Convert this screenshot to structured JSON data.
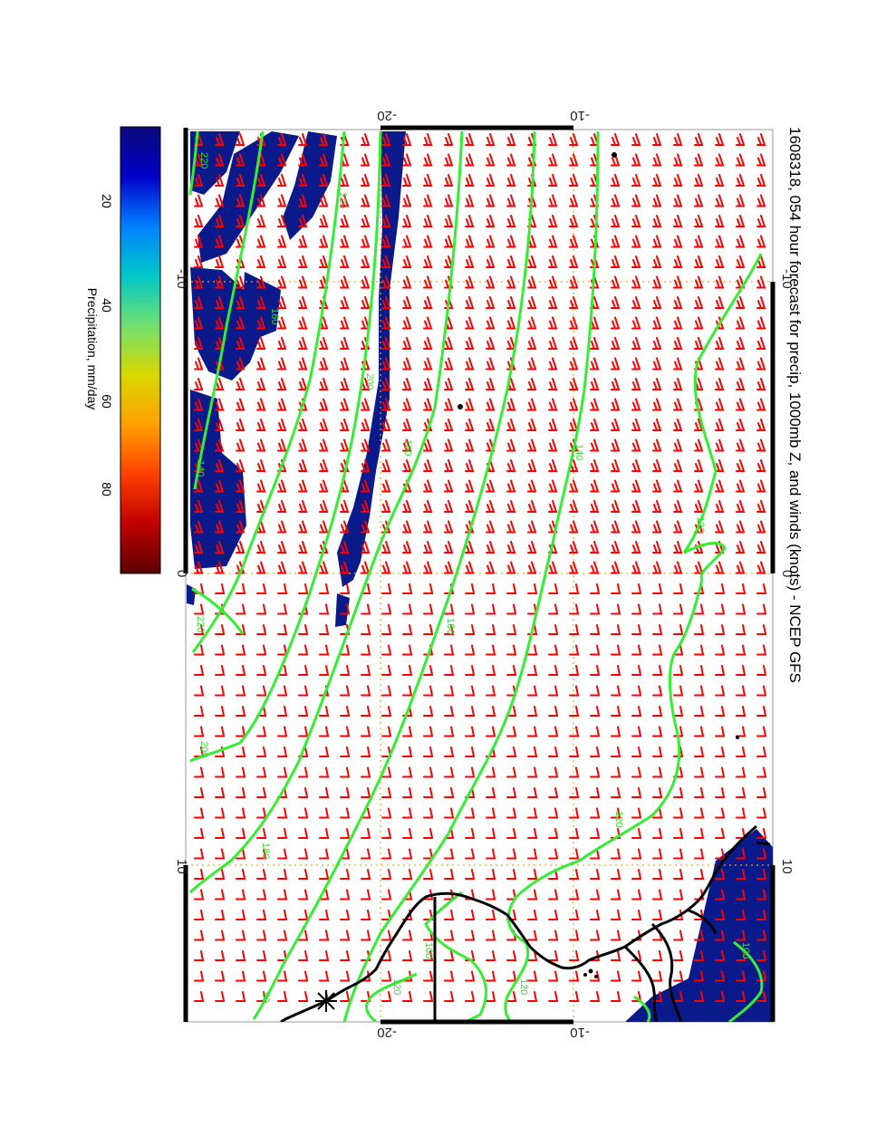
{
  "title": "1608318, 054 hour forecast for precip, 1000mb Z, and winds (knots) - NCEP GFS",
  "map": {
    "lon_ticks_top": [
      "-10",
      "0",
      "10"
    ],
    "lon_ticks_bottom": [
      "-10",
      "0",
      "10"
    ],
    "lat_ticks_left": [
      "-20",
      "-10"
    ],
    "lat_ticks_right": [
      "-20",
      "-10"
    ],
    "contour_labels": [
      "220",
      "220",
      "200",
      "180",
      "160",
      "140",
      "120",
      "120",
      "100",
      "80",
      "120",
      "220",
      "200",
      "180",
      "160",
      "140",
      "120",
      "100"
    ],
    "colors": {
      "contour": "#33ee33",
      "wind_barb": "#ff0000",
      "precip_fill": "#0b1a8a",
      "grid": "#e0b020",
      "coastline": "#000000"
    }
  },
  "colorbar": {
    "label": "Precipitation, mm/day",
    "ticks": [
      "20",
      "40",
      "60",
      "80"
    ],
    "range": [
      0,
      100
    ],
    "colors": [
      "#5a0000",
      "#c00000",
      "#ff4000",
      "#ffa000",
      "#d8d800",
      "#70e070",
      "#00c8c8",
      "#0080ff",
      "#0000c8",
      "#0a0a7a"
    ]
  }
}
